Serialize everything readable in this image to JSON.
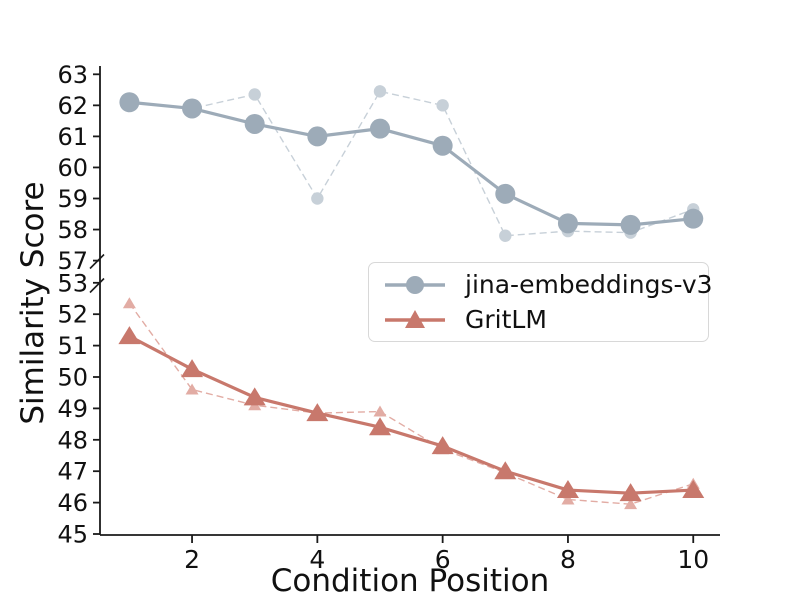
{
  "figure": {
    "xlabel": "Condition Position",
    "ylabel": "Similarity Score",
    "background_color": "#ffffff",
    "axis_color": "#1a1a1a"
  },
  "legend": {
    "items": [
      {
        "label": "jina-embeddings-v3",
        "marker": "circle",
        "color": "#9dabb8"
      },
      {
        "label": "GritLM",
        "marker": "triangle",
        "color": "#c8786c"
      }
    ]
  },
  "chart_data": {
    "type": "line",
    "title": "",
    "xlabel": "Condition Position",
    "ylabel": "Similarity Score",
    "grid": false,
    "broken_y_axis": true,
    "legend_position": "center-right",
    "x": [
      1,
      2,
      3,
      4,
      5,
      6,
      7,
      8,
      9,
      10
    ],
    "x_ticks": [
      2,
      4,
      6,
      8,
      10
    ],
    "panels": [
      {
        "id": "top",
        "ylim": [
          56.75,
          63.25
        ],
        "yticks": [
          57,
          58,
          59,
          60,
          61,
          62,
          63
        ]
      },
      {
        "id": "bottom",
        "ylim": [
          45,
          53.2
        ],
        "yticks": [
          45,
          46,
          47,
          48,
          49,
          50,
          51,
          52,
          53
        ]
      }
    ],
    "series": [
      {
        "name": "jina-embeddings-v3",
        "panel": "top",
        "line": "solid",
        "marker": "circle",
        "color": "#9dabb8",
        "in_legend": true,
        "values": [
          62.1,
          61.9,
          61.4,
          61.0,
          61.25,
          60.7,
          59.15,
          58.2,
          58.15,
          58.35
        ]
      },
      {
        "name": "jina-embeddings-v3-dashed",
        "panel": "top",
        "line": "dashed",
        "marker": "circle",
        "color": "#c7d0d8",
        "in_legend": false,
        "values": [
          62.1,
          61.9,
          62.35,
          59.0,
          62.45,
          62.0,
          57.8,
          57.95,
          57.9,
          58.65
        ]
      },
      {
        "name": "GritLM",
        "panel": "bottom",
        "line": "solid",
        "marker": "triangle",
        "color": "#c8786c",
        "in_legend": true,
        "values": [
          51.3,
          50.25,
          49.35,
          48.85,
          48.4,
          47.8,
          47.0,
          46.4,
          46.3,
          46.4
        ]
      },
      {
        "name": "GritLM-dashed",
        "panel": "bottom",
        "line": "dashed",
        "marker": "triangle",
        "color": "#e2aca4",
        "in_legend": false,
        "values": [
          52.35,
          49.6,
          49.1,
          48.85,
          48.9,
          47.7,
          46.95,
          46.1,
          45.95,
          46.6
        ]
      }
    ]
  }
}
